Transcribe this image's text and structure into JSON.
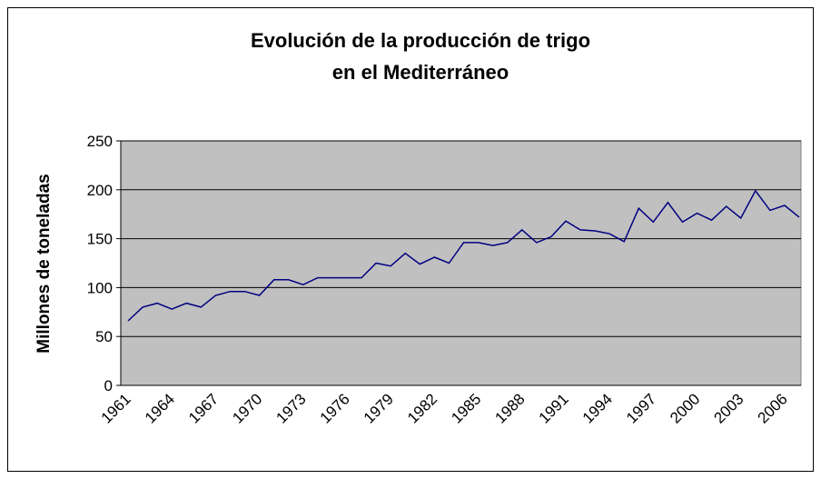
{
  "chart_data": {
    "type": "line",
    "title": [
      "Evolución de la producción de trigo",
      "en el Mediterráneo"
    ],
    "y_label": "Millones de toneladas",
    "categories": [
      "1961",
      null,
      null,
      "1964",
      null,
      null,
      "1967",
      null,
      null,
      "1970",
      null,
      null,
      "1973",
      null,
      null,
      "1976",
      null,
      null,
      "1979",
      null,
      null,
      "1982",
      null,
      null,
      "1985",
      null,
      null,
      "1988",
      null,
      null,
      "1991",
      null,
      null,
      "1994",
      null,
      null,
      "1997",
      null,
      null,
      "2000",
      null,
      null,
      "2003",
      null,
      null,
      "2006",
      null
    ],
    "values": [
      66,
      80,
      84,
      78,
      84,
      80,
      92,
      96,
      96,
      92,
      108,
      108,
      103,
      110,
      110,
      110,
      110,
      125,
      122,
      135,
      124,
      131,
      125,
      146,
      146,
      143,
      146,
      159,
      146,
      152,
      168,
      159,
      158,
      155,
      147,
      181,
      167,
      187,
      167,
      176,
      169,
      183,
      171,
      199,
      179,
      184,
      172
    ],
    "color": "#000080",
    "plot_color": "#c0c0c0",
    "ylim": [
      0,
      250
    ],
    "yticks": [
      0,
      50,
      100,
      150,
      200,
      250
    ],
    "grid": true
  }
}
